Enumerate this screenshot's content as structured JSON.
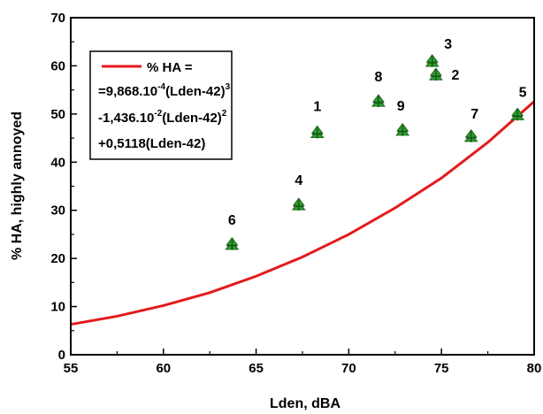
{
  "chart_data": {
    "type": "scatter",
    "xlabel": "Lden, dBA",
    "ylabel": "% HA, highly annoyed",
    "xlim": [
      55,
      80
    ],
    "ylim": [
      0,
      70
    ],
    "x_ticks": [
      55,
      60,
      65,
      70,
      75,
      80
    ],
    "x_tick_labels": [
      "55",
      "60",
      "65",
      "70",
      "75",
      "80"
    ],
    "y_ticks": [
      0,
      10,
      20,
      30,
      40,
      50,
      60,
      70
    ],
    "y_tick_labels": [
      "0",
      "10",
      "20",
      "30",
      "40",
      "50",
      "60",
      "70"
    ],
    "grid": false,
    "legend_position": "top-left",
    "curve": {
      "color": "#e41a1c",
      "x": [
        55,
        57.5,
        60,
        62.5,
        65,
        67.5,
        70,
        72.5,
        75,
        77.5,
        80
      ],
      "y": [
        6.3,
        8.0,
        10.2,
        12.9,
        16.3,
        20.3,
        25.0,
        30.5,
        36.7,
        44.1,
        52.6
      ]
    },
    "legend": {
      "line1": "% HA =",
      "line2_base": "=9,868.10",
      "line2_exp1": "-4",
      "line2_mid": "(Lden-42)",
      "line2_exp2": "3",
      "line3_base": "-1,436.10",
      "line3_exp1": "-2",
      "line3_mid": "(Lden-42)",
      "line3_exp2": "2",
      "line4": "+0,5118(Lden-42)"
    },
    "points": [
      {
        "label": "1",
        "x": 68.3,
        "y": 46.2
      },
      {
        "label": "2",
        "x": 74.7,
        "y": 58.2
      },
      {
        "label": "3",
        "x": 74.5,
        "y": 61.0
      },
      {
        "label": "4",
        "x": 67.3,
        "y": 31.2
      },
      {
        "label": "5",
        "x": 79.1,
        "y": 49.9
      },
      {
        "label": "6",
        "x": 63.7,
        "y": 23.0
      },
      {
        "label": "7",
        "x": 76.6,
        "y": 45.4
      },
      {
        "label": "8",
        "x": 71.6,
        "y": 52.7
      },
      {
        "label": "9",
        "x": 72.9,
        "y": 46.7
      }
    ],
    "point_color": "#2e9c2e",
    "point_edge_color": "#1f6b1f"
  }
}
